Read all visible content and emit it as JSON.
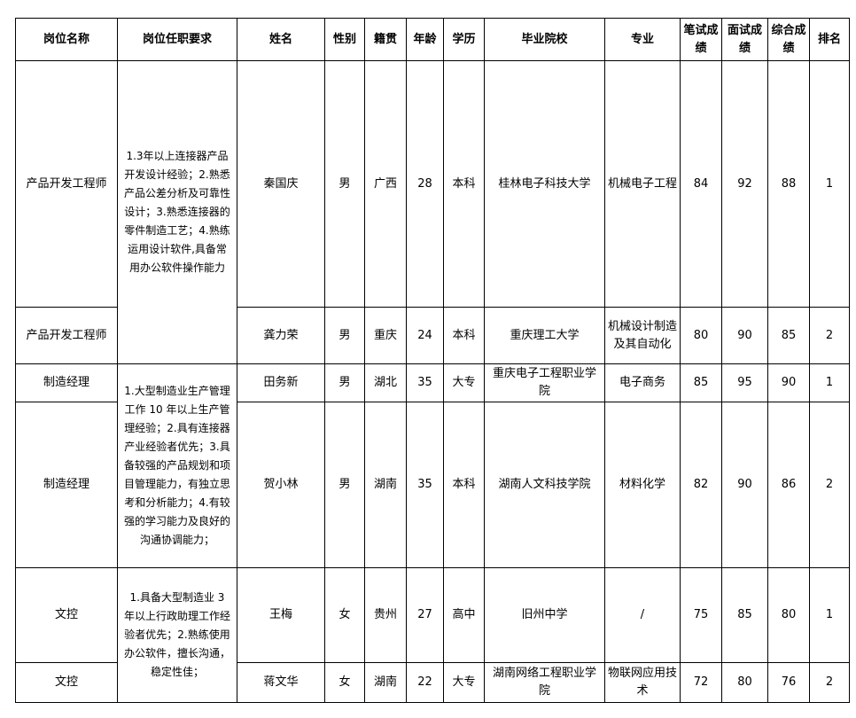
{
  "headers": [
    "岗位名称",
    "岗位任职要求",
    "姓名",
    "性别",
    "籍贯",
    "年龄",
    "学历",
    "毕业院校",
    "专业",
    "笔试成绩",
    "面试成绩",
    "综合成绩",
    "排名"
  ],
  "requirements": [
    "1.3年以上连接器产品开发设计经验；2.熟悉产品公差分析及可靠性设计；3.熟悉连接器的零件制造工艺；4.熟练运用设计软件,具备常用办公软件操作能力",
    "1.大型制造业生产管理工作 10 年以上生产管理经验；2.具有连接器产业经验者优先；3.具备较强的产品规划和项目管理能力，有独立思考和分析能力；4.有较强的学习能力及良好的沟通协调能力；",
    "1.具备大型制造业 3 年以上行政助理工作经验者优先；2.熟练使用办公软件，擅长沟通，稳定性佳；"
  ],
  "rows": [
    {
      "position": "产品开发工程师",
      "name": "秦国庆",
      "gender": "男",
      "origin": "广西",
      "age": "28",
      "education": "本科",
      "school": "桂林电子科技大学",
      "major": "机械电子工程",
      "written": "84",
      "interview": "92",
      "total": "88",
      "rank": "1"
    },
    {
      "position": "产品开发工程师",
      "name": "龚力荣",
      "gender": "男",
      "origin": "重庆",
      "age": "24",
      "education": "本科",
      "school": "重庆理工大学",
      "major": "机械设计制造及其自动化",
      "written": "80",
      "interview": "90",
      "total": "85",
      "rank": "2"
    },
    {
      "position": "制造经理",
      "name": "田务新",
      "gender": "男",
      "origin": "湖北",
      "age": "35",
      "education": "大专",
      "school": "重庆电子工程职业学院",
      "major": "电子商务",
      "written": "85",
      "interview": "95",
      "total": "90",
      "rank": "1"
    },
    {
      "position": "制造经理",
      "name": "贺小林",
      "gender": "男",
      "origin": "湖南",
      "age": "35",
      "education": "本科",
      "school": "湖南人文科技学院",
      "major": "材料化学",
      "written": "82",
      "interview": "90",
      "total": "86",
      "rank": "2"
    },
    {
      "position": "文控",
      "name": "王梅",
      "gender": "女",
      "origin": "贵州",
      "age": "27",
      "education": "高中",
      "school": "旧州中学",
      "major": "/",
      "written": "75",
      "interview": "85",
      "total": "80",
      "rank": "1"
    },
    {
      "position": "文控",
      "name": "蒋文华",
      "gender": "女",
      "origin": "湖南",
      "age": "22",
      "education": "大专",
      "school": "湖南网络工程职业学院",
      "major": "物联网应用技术",
      "written": "72",
      "interview": "80",
      "total": "76",
      "rank": "2"
    }
  ]
}
